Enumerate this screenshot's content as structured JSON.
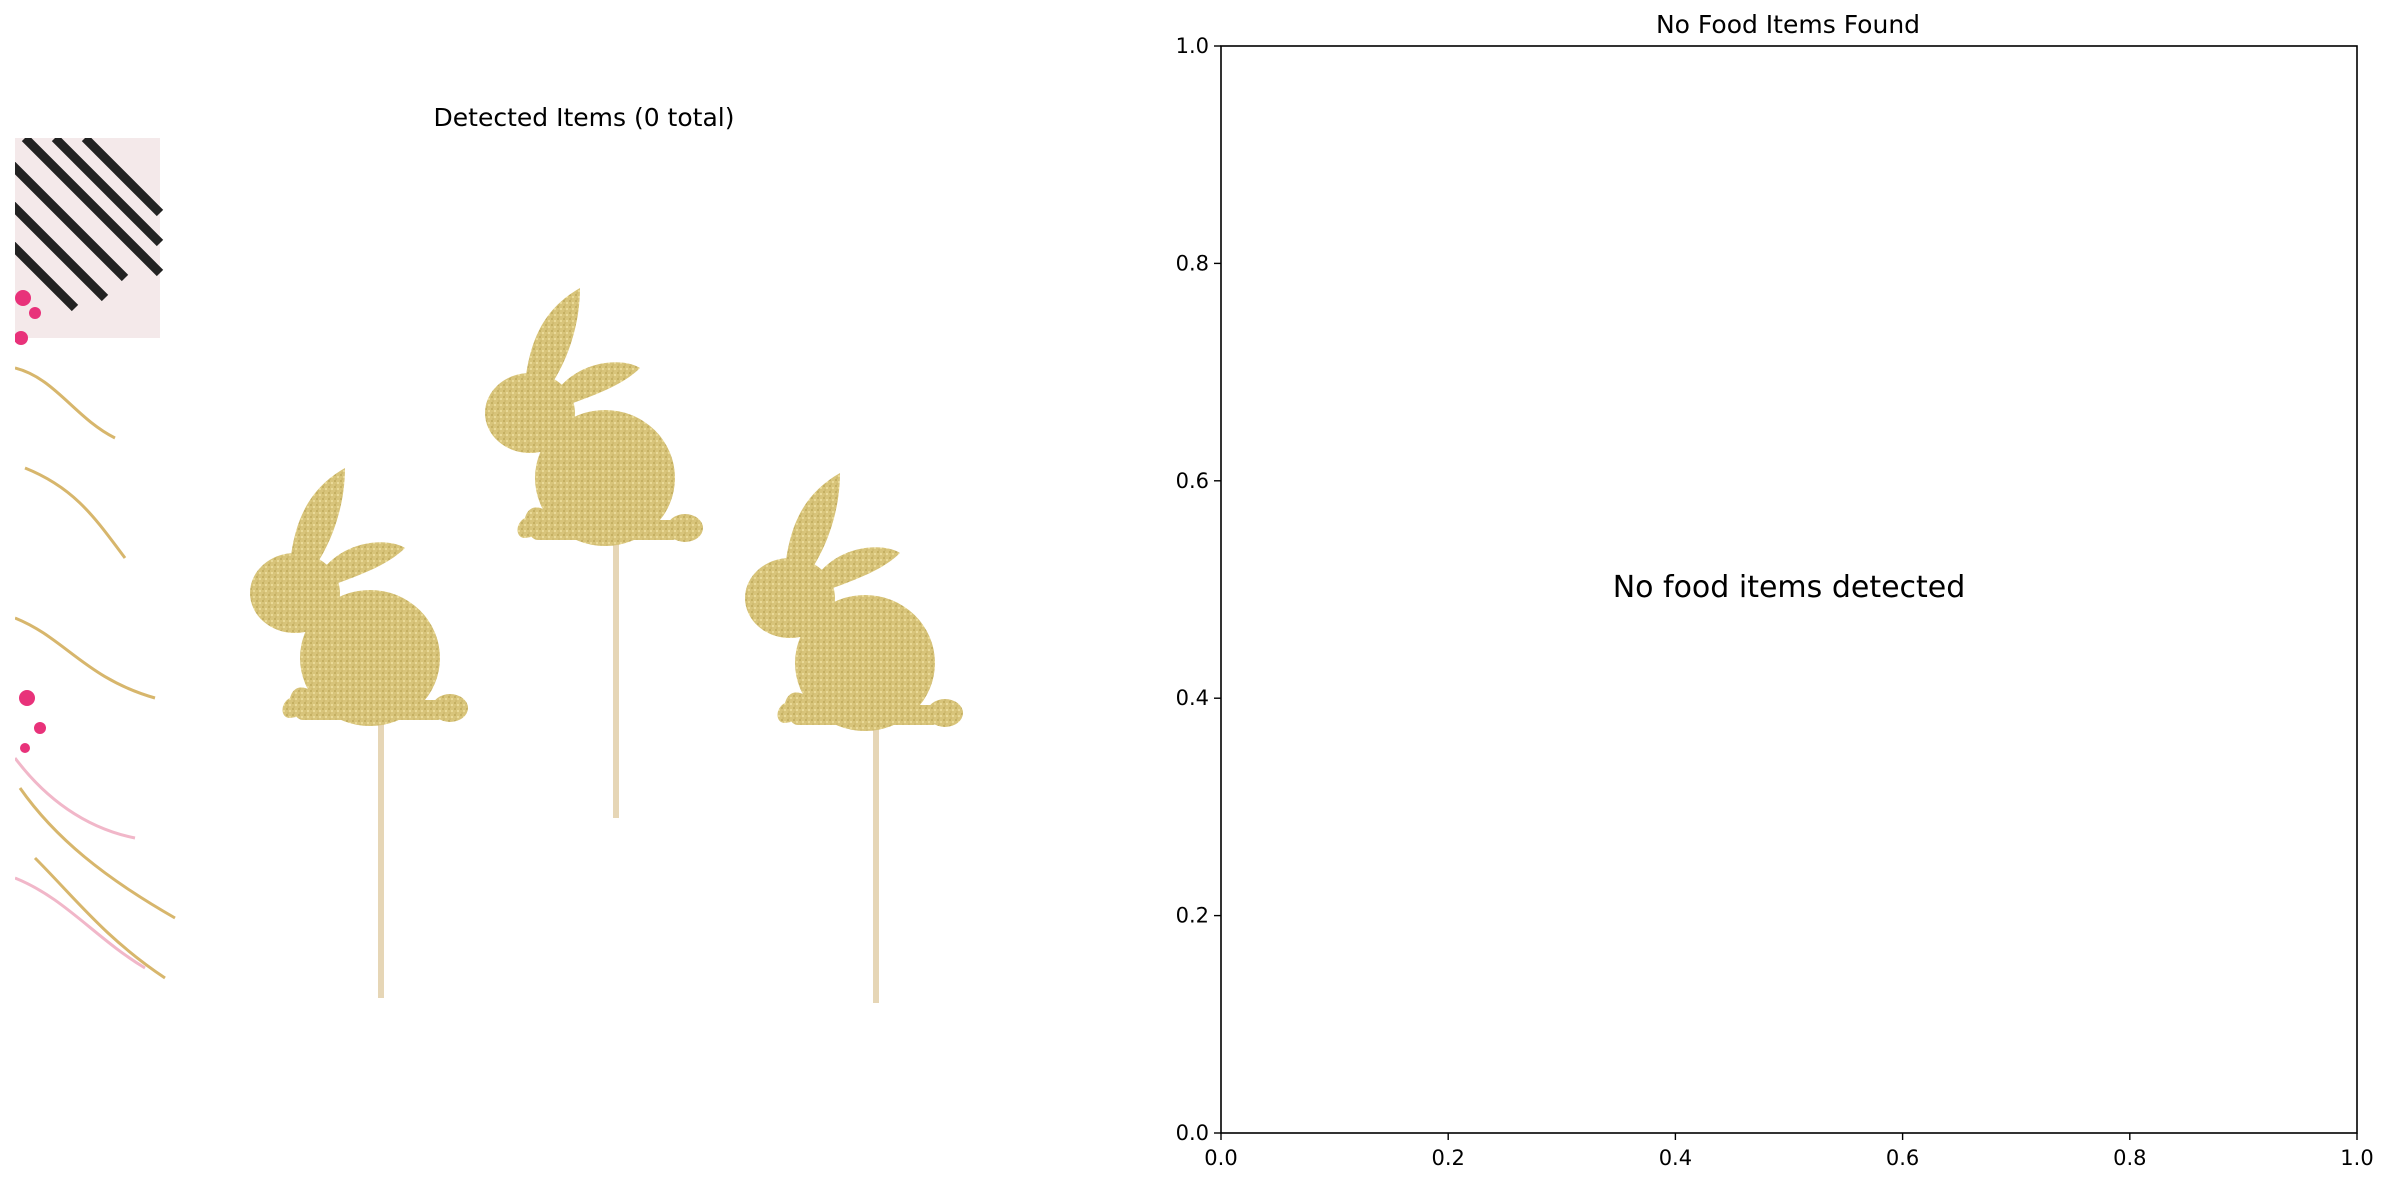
{
  "image_panel": {
    "title": "Detected Items (0 total)",
    "image_description": "three gold glitter bunny cupcake toppers on sticks with confetti at left edge"
  },
  "chart_data": {
    "type": "scatter",
    "title": "No Food Items Found",
    "xlabel": "",
    "ylabel": "",
    "xlim": [
      0.0,
      1.0
    ],
    "ylim": [
      0.0,
      1.0
    ],
    "xticks": [
      "0.0",
      "0.2",
      "0.4",
      "0.6",
      "0.8",
      "1.0"
    ],
    "yticks": [
      "0.0",
      "0.2",
      "0.4",
      "0.6",
      "0.8",
      "1.0"
    ],
    "annotations": [
      {
        "text": "No food items detected",
        "x": 0.5,
        "y": 0.5
      }
    ],
    "series": [],
    "grid": false
  },
  "colors": {
    "glitter_gold": "#d8c47a",
    "stick": "#e8d8b8",
    "axes": "#000000"
  }
}
